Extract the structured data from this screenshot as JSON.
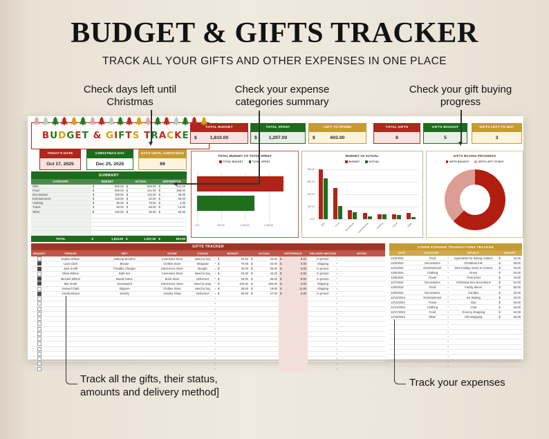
{
  "page": {
    "title": "BUDGET & GIFTS TRACKER",
    "subtitle": "TRACK ALL YOUR GIFTS AND OTHER EXPENSES IN ONE PLACE"
  },
  "callouts": {
    "days_line1": "Check days left until",
    "days_line2": "Christmas",
    "summary_line1": "Check your expense",
    "summary_line2": "categories summary",
    "progress_line1": "Check your gift buying",
    "progress_line2": "progress",
    "gifts_line1": "Track all the gifts, their status,",
    "gifts_line2": "amounts and delivery method]",
    "expenses": "Track your expenses"
  },
  "logo": {
    "letters": [
      {
        "ch": "B",
        "color": "#c0281c"
      },
      {
        "ch": "U",
        "color": "#1e7a1e"
      },
      {
        "ch": "D",
        "color": "#d4a015"
      },
      {
        "ch": "G",
        "color": "#1e7a1e"
      },
      {
        "ch": "E",
        "color": "#c0281c"
      },
      {
        "ch": "T",
        "color": "#1e7a1e"
      },
      {
        "ch": " ",
        "color": "#000"
      },
      {
        "ch": "&",
        "color": "#c0281c"
      },
      {
        "ch": " ",
        "color": "#000"
      },
      {
        "ch": "G",
        "color": "#d4a015"
      },
      {
        "ch": "I",
        "color": "#c0281c"
      },
      {
        "ch": "F",
        "color": "#1e7a1e"
      },
      {
        "ch": "T",
        "color": "#c0281c"
      },
      {
        "ch": "S",
        "color": "#d4a015"
      },
      {
        "ch": " ",
        "color": "#000"
      },
      {
        "ch": "T",
        "color": "#c0281c"
      },
      {
        "ch": "R",
        "color": "#1e7a1e"
      },
      {
        "ch": "A",
        "color": "#c0281c"
      },
      {
        "ch": "C",
        "color": "#d4a015"
      },
      {
        "ch": "K",
        "color": "#c0281c"
      },
      {
        "ch": "E",
        "color": "#1e7a1e"
      },
      {
        "ch": "R",
        "color": "#c0281c"
      }
    ],
    "tree_colors": [
      "#e0a8a4",
      "#b5ceb5",
      "#1e7a1e",
      "#c0281c",
      "#d4a015",
      "#1e7a1e",
      "#e0a8a4",
      "#c0281c",
      "#b5ceb5",
      "#1e7a1e",
      "#c0281c",
      "#d4a015",
      "#e0a8a4",
      "#1e7a1e",
      "#c0281c",
      "#b5ceb5",
      "#1e7a1e",
      "#c0281c",
      "#d4a015"
    ]
  },
  "stat_cards": [
    {
      "label": "TOTAL BUDGET",
      "prefix": "$",
      "value": "1,810.00",
      "theme": "red"
    },
    {
      "label": "TOTAL SPENT",
      "prefix": "$",
      "value": "1,207.00",
      "theme": "green"
    },
    {
      "label": "LEFT TO SPEND",
      "prefix": "$",
      "value": "603.00",
      "theme": "gold"
    },
    {
      "label": "TOTAL GIFTS",
      "prefix": "",
      "value": "8",
      "theme": "red"
    },
    {
      "label": "GIFTS BOUGHT",
      "prefix": "",
      "value": "5",
      "theme": "green"
    },
    {
      "label": "GIFTS LEFT TO BUY",
      "prefix": "",
      "value": "3",
      "theme": "gold"
    }
  ],
  "date_cards": [
    {
      "label": "TODAY'S DATE",
      "value": "Oct 17, 2025",
      "theme": "red"
    },
    {
      "label": "CHRISTMAS DAY",
      "value": "Dec 25, 2025",
      "theme": "green white-body"
    },
    {
      "label": "DAYS UNTIL CHRISTMAS",
      "value": "69",
      "theme": "gold"
    }
  ],
  "summary": {
    "title": "SUMMARY",
    "columns": [
      "CATEGORY",
      "BUDGET",
      "ACTUAL",
      "DIFFERENCE"
    ],
    "rows": [
      {
        "category": "Gifts",
        "budget": "800.00",
        "actual": "659.00",
        "difference": "141.00"
      },
      {
        "category": "Food",
        "budget": "500.00",
        "actual": "211.00",
        "difference": "289.00"
      },
      {
        "category": "Decorations",
        "budget": "150.00",
        "actual": "115.00",
        "difference": "35.00"
      },
      {
        "category": "Entertainment",
        "budget": "100.00",
        "actual": "40.00",
        "difference": "60.00"
      },
      {
        "category": "Clothing",
        "budget": "80.00",
        "actual": "79.00",
        "difference": "1.00"
      },
      {
        "category": "Travel",
        "budget": "80.00",
        "actual": "68.00",
        "difference": "12.00"
      },
      {
        "category": "Other",
        "budget": "100.00",
        "actual": "35.00",
        "difference": "65.00"
      }
    ],
    "empty_rows": 5,
    "total_label": "TOTAL",
    "total": {
      "budget": "1,810.00",
      "actual": "1,207.00",
      "difference": "603.00"
    }
  },
  "chart_data": [
    {
      "type": "bar",
      "orientation": "horizontal",
      "title": "TOTAL BUDGET VS TOTAL SPENT",
      "series": [
        {
          "name": "TOTAL BUDGET",
          "value": 1810,
          "color": "#b02318"
        },
        {
          "name": "TOTAL SPENT",
          "value": 1207,
          "color": "#1e6e1e"
        }
      ],
      "xlim": [
        0,
        2000
      ],
      "xticks": [
        {
          "v": 0,
          "label": "0.00"
        },
        {
          "v": 500,
          "label": "500.00"
        },
        {
          "v": 1000,
          "label": "1,000.00"
        },
        {
          "v": 1500,
          "label": "1,500.00"
        }
      ],
      "grid": true,
      "legend_position": "top"
    },
    {
      "type": "bar",
      "title": "BUDGET VS ACTUAL",
      "categories": [
        "Gifts",
        "Food",
        "Decorations",
        "Entertainment",
        "Clothing",
        "Travel",
        "Other"
      ],
      "series": [
        {
          "name": "BUDGET",
          "color": "#b02318",
          "values": [
            800,
            500,
            150,
            100,
            80,
            80,
            100
          ]
        },
        {
          "name": "ACTUAL",
          "color": "#1e6e1e",
          "values": [
            659,
            211,
            115,
            40,
            79,
            68,
            35
          ]
        }
      ],
      "ylim": [
        0,
        800
      ],
      "yticks": [
        {
          "v": 0,
          "label": "0.00"
        },
        {
          "v": 200,
          "label": "200.00"
        },
        {
          "v": 400,
          "label": "400.00"
        },
        {
          "v": 600,
          "label": "600.00"
        },
        {
          "v": 800,
          "label": "800.00"
        }
      ],
      "grid": true,
      "legend_position": "top"
    },
    {
      "type": "pie",
      "donut": true,
      "title": "GIFTS BUYING PROGRESS",
      "slices": [
        {
          "label": "GIFTS BOUGHT",
          "value": 5,
          "color": "#b11d0e"
        },
        {
          "label": "GIFTS LEFT TO BUY",
          "value": 3,
          "color": "#dc9d94"
        }
      ],
      "legend_position": "top"
    }
  ],
  "gifts_tracker": {
    "title": "GIFTS TRACKER",
    "columns": [
      "BOUGHT",
      "PERSON",
      "GIFT",
      "STORE",
      "STATUS",
      "BUDGET",
      "ACTUAL",
      "DIFFERENCE",
      "DELIVERY METHOD",
      "NOTES"
    ],
    "rows": [
      {
        "bought": false,
        "person": "Sophia Wilson",
        "gift": "Makeup Brushes",
        "store": "Cosmetics Store",
        "status": "Need to buy",
        "budget": "50.00",
        "actual": "42.00",
        "difference": "8.00",
        "delivery": "In person",
        "notes": ""
      },
      {
        "bought": true,
        "person": "Liam Clark",
        "gift": "Blouse",
        "store": "Clothes Store",
        "status": "Wrapped",
        "budget": "70.00",
        "actual": "64.00",
        "difference": "6.00",
        "delivery": "Shipping",
        "notes": ""
      },
      {
        "bought": true,
        "person": "Jack Smith",
        "gift": "Portable Charger",
        "store": "Electronics Store",
        "status": "Bought",
        "budget": "40.00",
        "actual": "35.00",
        "difference": "5.00",
        "delivery": "In person",
        "notes": ""
      },
      {
        "bought": false,
        "person": "Olivia Wilson",
        "gift": "Bath Set",
        "store": "Cosmetics Store",
        "status": "Need to buy",
        "budget": "20.00",
        "actual": "22.00",
        "difference": "-2.00",
        "delivery": "In person",
        "notes": ""
      },
      {
        "bought": true,
        "person": "Michael Wilson",
        "gift": "Board Game",
        "store": "Book Store",
        "status": "Delivered",
        "budget": "25.00",
        "actual": "30.00",
        "difference": "-5.00",
        "delivery": "In person",
        "notes": ""
      },
      {
        "bought": true,
        "person": "Mia Smith",
        "gift": "Smartwatch",
        "store": "Electronics Store",
        "status": "Need to wrap",
        "budget": "400.00",
        "actual": "400.00",
        "difference": "0.00",
        "delivery": "Shipping",
        "notes": ""
      },
      {
        "bought": false,
        "person": "Samuel Clark",
        "gift": "Slippers",
        "store": "Clothes Store",
        "status": "Need to buy",
        "budget": "30.00",
        "actual": "19.00",
        "difference": "11.00",
        "delivery": "Shipping",
        "notes": ""
      },
      {
        "bought": true,
        "person": "Amelia Brown",
        "gift": "Jewelry",
        "store": "Jewelry Shop",
        "status": "Delivered",
        "budget": "50.00",
        "actual": "47.00",
        "difference": "3.00",
        "delivery": "In person",
        "notes": ""
      }
    ],
    "empty_rows": 15
  },
  "expense_tracker": {
    "title": "OTHER EXPENSE TRANSACTIONS TRACKER",
    "columns": [
      "DATE",
      "CATEGORY",
      "DETAILS",
      "AMOUNT"
    ],
    "rows": [
      {
        "date": "12/2/2024",
        "category": "Food",
        "details": "Ingredients for baking cookies",
        "amount": "22.00"
      },
      {
        "date": "12/3/2024",
        "category": "Decorations",
        "details": "Christmas tree",
        "amount": "39.00"
      },
      {
        "date": "12/4/2024",
        "category": "Entertainment",
        "details": "New holiday movie in cinema",
        "amount": "20.00"
      },
      {
        "date": "12/5/2024",
        "category": "Clothing",
        "details": "Dress",
        "amount": "30.00"
      },
      {
        "date": "12/6/2024",
        "category": "Travel",
        "details": "Train ticket",
        "amount": "15.00"
      },
      {
        "date": "12/7/2024",
        "category": "Decorations",
        "details": "Christmas tree decorations",
        "amount": "51.00"
      },
      {
        "date": "12/8/2024",
        "category": "Food",
        "details": "Family dinner",
        "amount": "95.00"
      },
      {
        "date": "12/9/2024",
        "category": "Decorations",
        "details": "Candles",
        "amount": "25.00"
      },
      {
        "date": "12/10/2024",
        "category": "Entertainment",
        "details": "Ice skating",
        "amount": "20.00"
      },
      {
        "date": "12/11/2024",
        "category": "Travel",
        "details": "Gas",
        "amount": "53.00"
      },
      {
        "date": "12/14/2024",
        "category": "Clothing",
        "details": "Coat",
        "amount": "49.00"
      },
      {
        "date": "12/17/2024",
        "category": "Food",
        "details": "Grocery shopping",
        "amount": "94.00"
      },
      {
        "date": "12/18/2024",
        "category": "Other",
        "details": "Gift Wrapping",
        "amount": "35.00"
      }
    ],
    "empty_rows": 10
  },
  "colors": {
    "red": "#ae271b",
    "green": "#1d6c1d",
    "gold": "#c79b2f",
    "tracker_red_title": "#a23427",
    "tracker_red_header": "#bf574a",
    "expense_gold_title": "#c49a33",
    "expense_gold_header": "#cfa94a",
    "difference_pink": "#f3ded9",
    "donut_red": "#b11d0e",
    "donut_pink": "#dc9d94"
  }
}
